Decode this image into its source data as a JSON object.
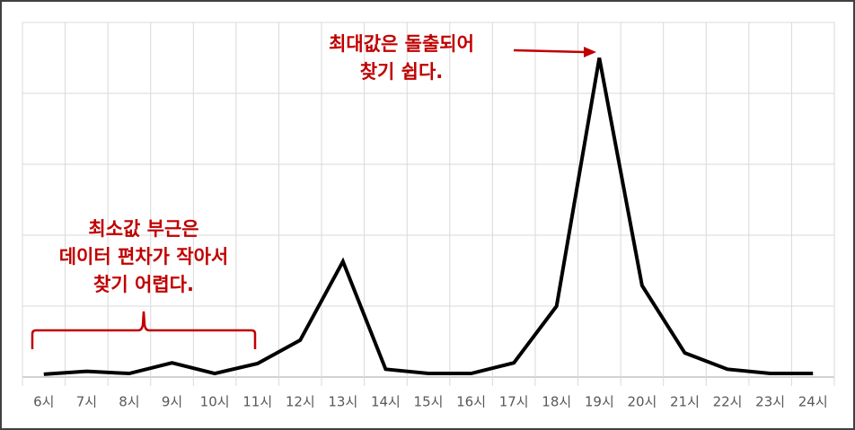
{
  "chart_data": {
    "type": "line",
    "categories": [
      "6시",
      "7시",
      "8시",
      "9시",
      "10시",
      "11시",
      "12시",
      "13시",
      "14시",
      "15시",
      "16시",
      "17시",
      "18시",
      "19시",
      "20시",
      "21시",
      "22시",
      "23시",
      "24시"
    ],
    "series": [
      {
        "color": "#000000",
        "values": [
          0.04,
          0.08,
          0.05,
          0.2,
          0.05,
          0.19,
          0.52,
          1.63,
          0.11,
          0.05,
          0.05,
          0.2,
          1.0,
          4.5,
          1.29,
          0.34,
          0.11,
          0.05,
          0.05
        ]
      }
    ],
    "ylim": [
      0,
      5
    ],
    "yticks": [
      0,
      1,
      2,
      3,
      4,
      5
    ],
    "show_ytick_labels": false,
    "grid": true,
    "annotations": [
      {
        "lines": [
          "최대값은 돌출되어",
          "찾기 쉽다."
        ],
        "color": "#c00000"
      },
      {
        "lines": [
          "최소값 부근은",
          "데이터 편차가 작아서",
          "찾기 어렵다."
        ],
        "color": "#c00000"
      }
    ]
  }
}
